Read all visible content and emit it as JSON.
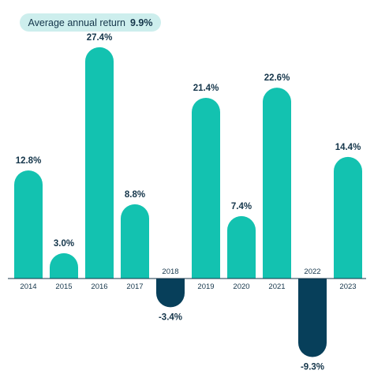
{
  "badge": {
    "label": "Average annual return",
    "value": "9.9%"
  },
  "colors": {
    "positive": "#13c2b0",
    "negative": "#073f5a",
    "badge_bg": "#cdeeed",
    "text": "#14354a",
    "axis": "#14354a"
  },
  "chart_data": {
    "type": "bar",
    "categories": [
      "2014",
      "2015",
      "2016",
      "2017",
      "2018",
      "2019",
      "2020",
      "2021",
      "2022",
      "2023"
    ],
    "values": [
      12.8,
      3.0,
      27.4,
      8.8,
      -3.4,
      21.4,
      7.4,
      22.6,
      -9.3,
      14.4
    ],
    "value_labels": [
      "12.8%",
      "3.0%",
      "27.4%",
      "8.8%",
      "-3.4%",
      "21.4%",
      "7.4%",
      "22.6%",
      "-9.3%",
      "14.4%"
    ],
    "title": "",
    "xlabel": "",
    "ylabel": "",
    "ylim": [
      -9.3,
      27.4
    ],
    "grid": false,
    "legend": "none"
  }
}
